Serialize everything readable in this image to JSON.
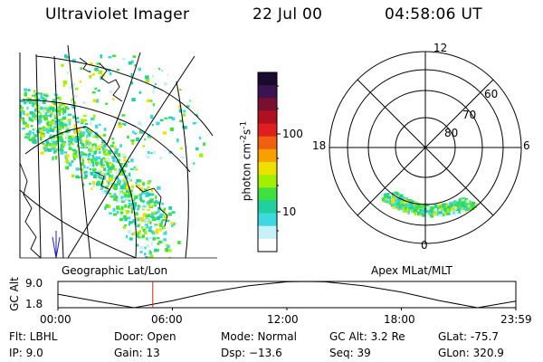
{
  "header": {
    "instrument": "Ultraviolet Imager",
    "date": "22 Jul 00",
    "time": "04:58:06 UT"
  },
  "geo_panel": {
    "label": "Geographic Lat/Lon"
  },
  "polar_panel": {
    "label": "Apex MLat/MLT",
    "mlt_labels": [
      "12",
      "18",
      "6",
      "0"
    ],
    "mlat_labels": [
      "60",
      "70",
      "80"
    ]
  },
  "colorbar": {
    "label": "photon cm",
    "exp1": "-2",
    "mid": "s",
    "exp2": "-1",
    "ticks": [
      "100",
      "10"
    ],
    "scale": "log",
    "colors": [
      "#1a0a2e",
      "#3a1450",
      "#7a1030",
      "#b01020",
      "#e02020",
      "#f06010",
      "#f8a000",
      "#f0e000",
      "#a0f000",
      "#40e040",
      "#20d0a0",
      "#40d8e0",
      "#c8f0f8",
      "#ffffff"
    ]
  },
  "chart_data": {
    "type": "line",
    "title": "",
    "ylabel": "GC Alt",
    "ytick_labels": [
      "9.0",
      "1.8"
    ],
    "ylim": [
      1.8,
      9.0
    ],
    "xtick_labels": [
      "00:00",
      "06:00",
      "12:00",
      "18:00",
      "23:59"
    ],
    "xlim_hours": [
      0,
      24
    ],
    "current_time_hours": 4.97,
    "series": [
      {
        "x": [
          0,
          2,
          4,
          6,
          8,
          10,
          12,
          13,
          14,
          16,
          18,
          20,
          22,
          24
        ],
        "values": [
          5.5,
          3.6,
          1.8,
          3.7,
          6.1,
          7.8,
          8.9,
          9.0,
          8.9,
          7.8,
          6.1,
          3.7,
          1.8,
          3.6
        ]
      }
    ]
  },
  "status": {
    "row1": {
      "flt": "Flt: LBHL",
      "door": "Door: Open",
      "mode": "Mode: Normal",
      "gcalt": "GC Alt: 3.2 Re",
      "glat": "GLat: -75.7"
    },
    "row2": {
      "ip": "IP:  9.0",
      "gain": "Gain: 13",
      "dsp": "Dsp:  −13.6",
      "seq": "Seq: 39",
      "glon": "GLon: 320.9"
    }
  }
}
